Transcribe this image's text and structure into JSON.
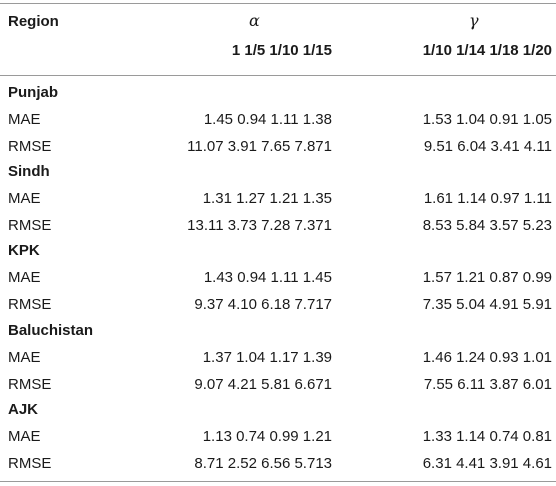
{
  "header": {
    "region_label": "Region",
    "alpha_symbol": "α",
    "gamma_symbol": "γ",
    "alpha_params": "1 1/5 1/10 1/15",
    "gamma_params": "1/10 1/14 1/18 1/20"
  },
  "rows": [
    {
      "region": "Punjab",
      "mae": {
        "label": "MAE",
        "alpha": "1.45 0.94 1.11 1.38",
        "gamma": "1.53 1.04 0.91 1.05"
      },
      "rmse": {
        "label": "RMSE",
        "alpha": "11.07 3.91 7.65 7.871",
        "gamma": "9.51 6.04 3.41 4.11"
      }
    },
    {
      "region": "Sindh",
      "mae": {
        "label": "MAE",
        "alpha": "1.31 1.27 1.21 1.35",
        "gamma": "1.61 1.14 0.97 1.11"
      },
      "rmse": {
        "label": "RMSE",
        "alpha": "13.11 3.73 7.28 7.371",
        "gamma": "8.53 5.84 3.57 5.23"
      }
    },
    {
      "region": "KPK",
      "mae": {
        "label": "MAE",
        "alpha": "1.43 0.94 1.11 1.45",
        "gamma": "1.57 1.21 0.87 0.99"
      },
      "rmse": {
        "label": "RMSE",
        "alpha": "9.37 4.10 6.18 7.717",
        "gamma": "7.35 5.04 4.91 5.91"
      }
    },
    {
      "region": "Baluchistan",
      "mae": {
        "label": "MAE",
        "alpha": "1.37 1.04 1.17 1.39",
        "gamma": "1.46 1.24 0.93 1.01"
      },
      "rmse": {
        "label": "RMSE",
        "alpha": "9.07 4.21 5.81 6.671",
        "gamma": "7.55 6.11 3.87 6.01"
      }
    },
    {
      "region": "AJK",
      "mae": {
        "label": "MAE",
        "alpha": "1.13 0.74 0.99 1.21",
        "gamma": "1.33 1.14 0.74 0.81"
      },
      "rmse": {
        "label": "RMSE",
        "alpha": "8.71 2.52 6.56 5.713",
        "gamma": "6.31 4.41 3.91 4.61"
      }
    }
  ]
}
